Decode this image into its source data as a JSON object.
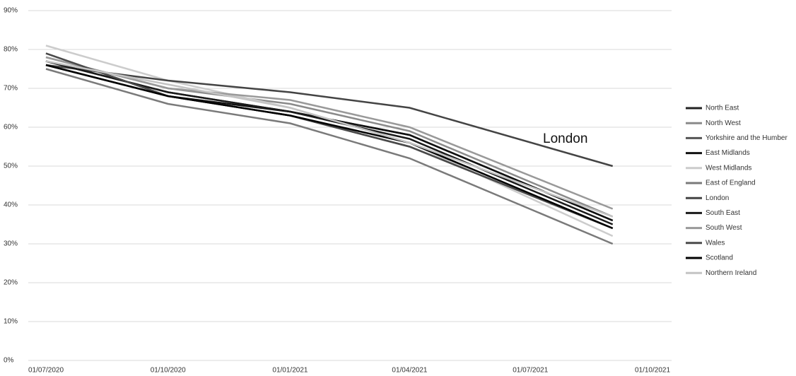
{
  "chart_data": {
    "type": "line",
    "annotation": "London",
    "x": [
      "01/07/2020",
      "01/10/2020",
      "01/01/2021",
      "01/04/2021",
      "01/09/2021"
    ],
    "xlim": [
      "01/07/2020",
      "01/10/2021"
    ],
    "xticks": [
      "01/07/2020",
      "01/10/2020",
      "01/01/2021",
      "01/04/2021",
      "01/07/2021",
      "01/10/2021"
    ],
    "ylim": [
      0,
      90
    ],
    "yticks": [
      {
        "value": 0,
        "label": "0%"
      },
      {
        "value": 10,
        "label": "10%"
      },
      {
        "value": 20,
        "label": "20%"
      },
      {
        "value": 30,
        "label": "30%"
      },
      {
        "value": 40,
        "label": "40%"
      },
      {
        "value": 50,
        "label": "50%"
      },
      {
        "value": 60,
        "label": "60%"
      },
      {
        "value": 70,
        "label": "70%"
      },
      {
        "value": 80,
        "label": "80%"
      },
      {
        "value": 90,
        "label": "90%"
      }
    ],
    "grid": true,
    "legend": "right",
    "series": [
      {
        "name": "North East",
        "color": "#222222",
        "values": [
          77,
          69,
          64,
          58,
          36
        ]
      },
      {
        "name": "North West",
        "color": "#8a8a8a",
        "values": [
          78,
          70,
          66,
          59,
          37
        ]
      },
      {
        "name": "Yorkshire and the Humber",
        "color": "#555555",
        "values": [
          79,
          68,
          63,
          55,
          34
        ]
      },
      {
        "name": "East Midlands",
        "color": "#111111",
        "values": [
          76,
          68,
          64,
          58,
          36
        ]
      },
      {
        "name": "West Midlands",
        "color": "#cccccc",
        "values": [
          81,
          72,
          65,
          56,
          32
        ]
      },
      {
        "name": "East of England",
        "color": "#7a7a7a",
        "values": [
          75,
          66,
          61,
          52,
          30
        ]
      },
      {
        "name": "London",
        "color": "#444444",
        "values": [
          76,
          72,
          69,
          65,
          50
        ]
      },
      {
        "name": "South East",
        "color": "#1a1a1a",
        "values": [
          77,
          69,
          64,
          57,
          35
        ]
      },
      {
        "name": "South West",
        "color": "#999999",
        "values": [
          78,
          70,
          67,
          60,
          39
        ]
      },
      {
        "name": "Wales",
        "color": "#4a4a4a",
        "values": [
          79,
          68,
          63,
          55,
          34
        ]
      },
      {
        "name": "Scotland",
        "color": "#000000",
        "values": [
          76,
          68,
          63,
          56,
          34
        ]
      },
      {
        "name": "Northern Ireland",
        "color": "#c4c4c4",
        "values": [
          77,
          71,
          65,
          56,
          37
        ]
      }
    ]
  }
}
